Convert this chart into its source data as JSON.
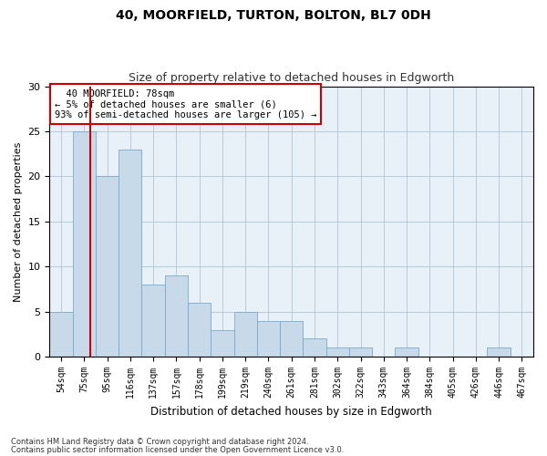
{
  "title1": "40, MOORFIELD, TURTON, BOLTON, BL7 0DH",
  "title2": "Size of property relative to detached houses in Edgworth",
  "xlabel": "Distribution of detached houses by size in Edgworth",
  "ylabel": "Number of detached properties",
  "categories": [
    "54sqm",
    "75sqm",
    "95sqm",
    "116sqm",
    "137sqm",
    "157sqm",
    "178sqm",
    "199sqm",
    "219sqm",
    "240sqm",
    "261sqm",
    "281sqm",
    "302sqm",
    "322sqm",
    "343sqm",
    "364sqm",
    "384sqm",
    "405sqm",
    "426sqm",
    "446sqm",
    "467sqm"
  ],
  "values": [
    5,
    25,
    20,
    23,
    8,
    9,
    6,
    3,
    5,
    4,
    4,
    2,
    1,
    1,
    0,
    1,
    0,
    0,
    0,
    1,
    0
  ],
  "bar_color": "#c8daea",
  "bar_edge_color": "#7aaac8",
  "vline_color": "#cc0000",
  "vline_xindex": 0.78,
  "annotation_text": "  40 MOORFIELD: 78sqm\n← 5% of detached houses are smaller (6)\n93% of semi-detached houses are larger (105) →",
  "annotation_box_color": "#ffffff",
  "annotation_box_edge": "#cc0000",
  "ylim": [
    0,
    30
  ],
  "yticks": [
    0,
    5,
    10,
    15,
    20,
    25,
    30
  ],
  "footer1": "Contains HM Land Registry data © Crown copyright and database right 2024.",
  "footer2": "Contains public sector information licensed under the Open Government Licence v3.0.",
  "bg_color": "#ffffff",
  "axes_bg_color": "#e8f0f8",
  "grid_color": "#b0c4d8",
  "title1_fontsize": 10,
  "title2_fontsize": 9
}
